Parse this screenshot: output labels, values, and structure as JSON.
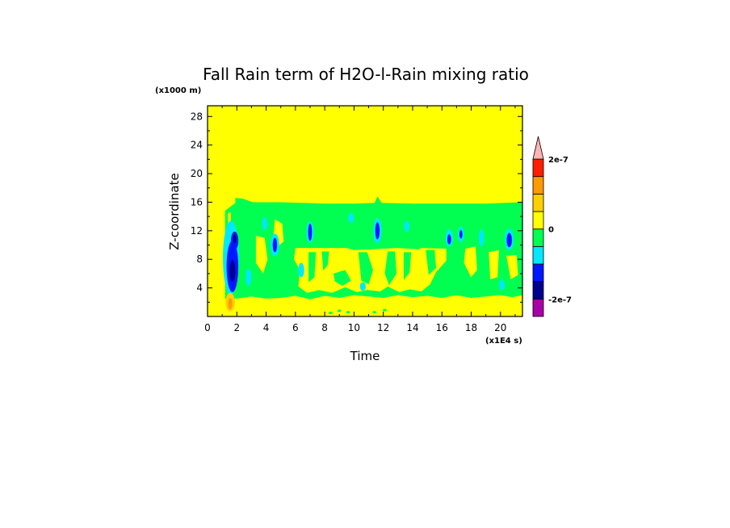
{
  "chart_data": {
    "type": "heatmap",
    "title": "Fall Rain term of H2O-l-Rain mixing ratio",
    "xlabel": "Time",
    "ylabel": "Z-coordinate",
    "x_unit": "(x1E4 s)",
    "y_unit": "(x1000 m)",
    "xlim": [
      0,
      21.5
    ],
    "ylim": [
      0,
      29.5
    ],
    "x_ticks": [
      "0",
      "2",
      "4",
      "6",
      "8",
      "10",
      "12",
      "14",
      "16",
      "18",
      "20"
    ],
    "y_ticks": [
      "4",
      "8",
      "12",
      "16",
      "20",
      "24",
      "28"
    ],
    "grid": false,
    "colorbar": {
      "levels": [
        {
          "color": "#a800a8"
        },
        {
          "color": "#000090"
        },
        {
          "color": "#0018ff"
        },
        {
          "color": "#00e8ff"
        },
        {
          "color": "#00ff50"
        },
        {
          "color": "#ffff00"
        },
        {
          "color": "#ffd000"
        },
        {
          "color": "#ff9a00"
        },
        {
          "color": "#ff1e00"
        },
        {
          "color": "#ffb4b4"
        }
      ],
      "labels": [
        {
          "text": "2e-7",
          "value": 2e-07
        },
        {
          "text": "0",
          "value": 0
        },
        {
          "text": "-2e-7",
          "value": -2e-07
        }
      ]
    },
    "regions": {
      "background": "near 0 (yellow)",
      "negative_band": "z 2.5–16.5 km, t 1–21.5 (green, light negative)",
      "inner_pocket": "z 3.5–9.5 km, t 6–16.5 (yellow, near 0)",
      "strong_negative_cores": "t ≈ 1.6, 4.6, 7.0, 11.6, 16.5, 17.3, 20.6 (blue)",
      "weak_positive": "t ≈ 1.5, z 1–3 km (orange)"
    }
  }
}
